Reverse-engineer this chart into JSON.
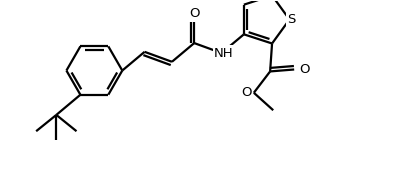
{
  "line_color": "#000000",
  "background_color": "#ffffff",
  "line_width": 1.6,
  "figsize": [
    4.06,
    1.76
  ],
  "dpi": 100,
  "font_size": 9.5,
  "xlim": [
    0,
    10.2
  ],
  "ylim": [
    0,
    4.5
  ]
}
